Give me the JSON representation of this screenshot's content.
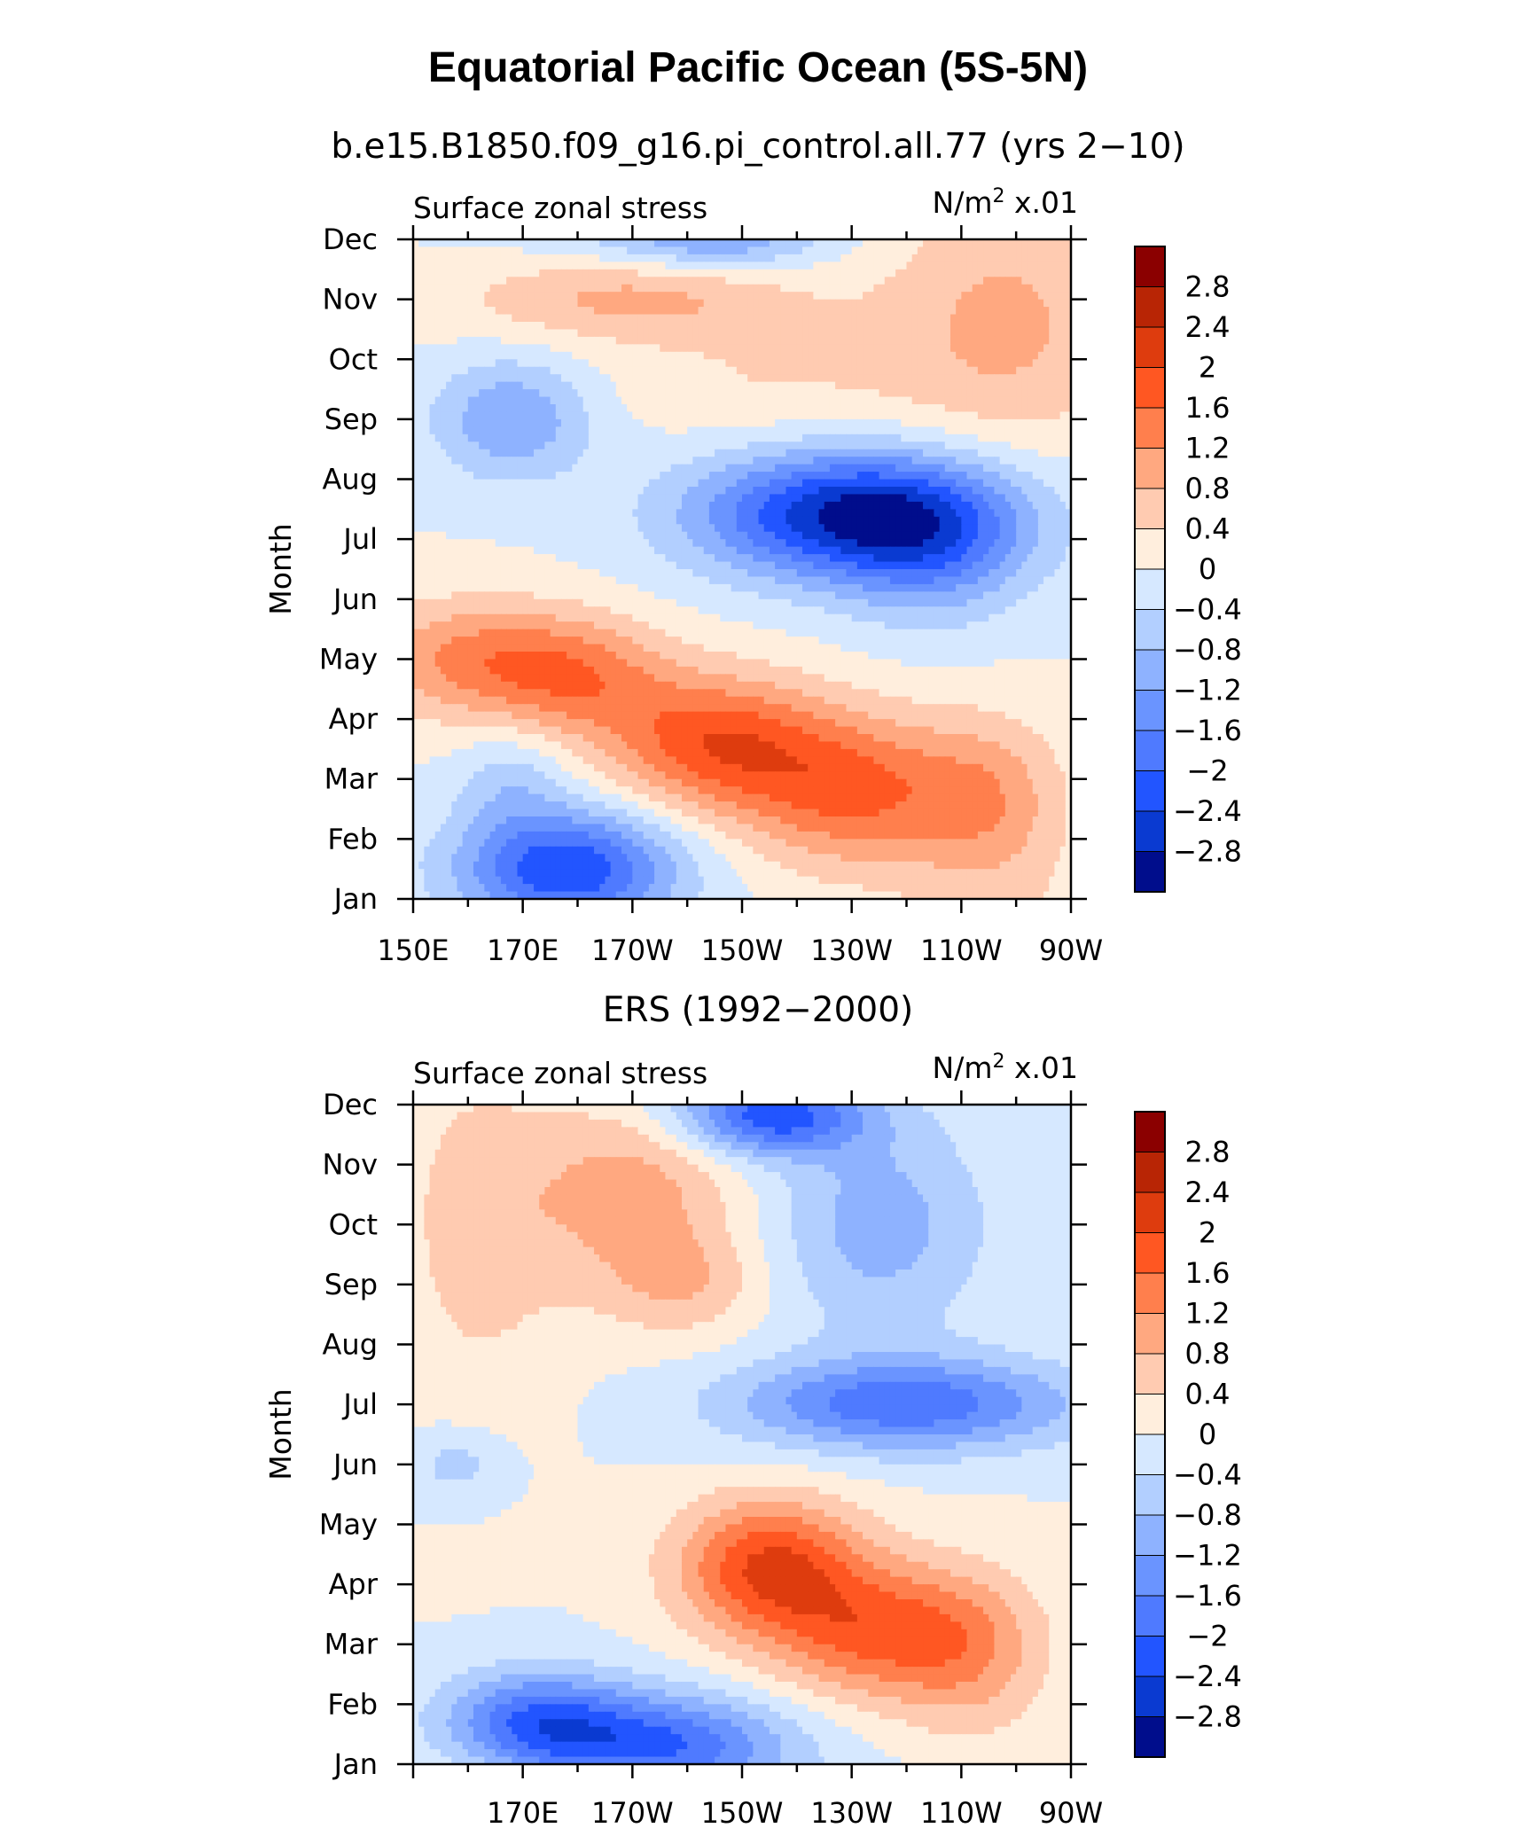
{
  "figure": {
    "title": "Equatorial Pacific Ocean (5S-5N)"
  },
  "chart_data": [
    {
      "type": "heatmap",
      "title": "b.e15.B1850.f09_g16.pi_control.all.77 (yrs 2−10)",
      "left_label": "Surface zonal stress",
      "units_label": "N/m",
      "units_sup": "2",
      "units_scale": "x.01",
      "ylabel": "Month",
      "x_ticks": [
        "150E",
        "170E",
        "170W",
        "150W",
        "130W",
        "110W",
        "90W"
      ],
      "y_ticks": [
        "Jan",
        "Feb",
        "Mar",
        "Apr",
        "May",
        "Jun",
        "Jul",
        "Aug",
        "Sep",
        "Oct",
        "Nov",
        "Dec"
      ],
      "xlim": [
        150,
        270
      ],
      "ylim": [
        1,
        12
      ],
      "features": [
        {
          "lon": 178,
          "month": 1.5,
          "amp": -2.4,
          "slon": 14,
          "smon": 0.7
        },
        {
          "lon": 168,
          "month": 3.0,
          "amp": -0.6,
          "slon": 7,
          "smon": 0.6
        },
        {
          "lon": 168,
          "month": 9.0,
          "amp": -1.2,
          "slon": 10,
          "smon": 0.7
        },
        {
          "lon": 205,
          "month": 12.0,
          "amp": -1.2,
          "slon": 14,
          "smon": 0.35
        },
        {
          "lon": 230,
          "month": 7.4,
          "amp": -2.8,
          "slon": 20,
          "smon": 0.75
        },
        {
          "lon": 245,
          "month": 6.8,
          "amp": -1.0,
          "slon": 12,
          "smon": 0.9
        },
        {
          "lon": 160,
          "month": 5.0,
          "amp": 1.2,
          "slon": 14,
          "smon": 0.7
        },
        {
          "lon": 180,
          "month": 4.7,
          "amp": 1.2,
          "slon": 12,
          "smon": 0.7
        },
        {
          "lon": 205,
          "month": 3.6,
          "amp": 1.8,
          "slon": 14,
          "smon": 0.8
        },
        {
          "lon": 230,
          "month": 2.8,
          "amp": 1.6,
          "slon": 14,
          "smon": 0.9
        },
        {
          "lon": 255,
          "month": 2.6,
          "amp": 1.0,
          "slon": 10,
          "smon": 1.0
        },
        {
          "lon": 190,
          "month": 11.0,
          "amp": 0.9,
          "slon": 22,
          "smon": 0.5
        },
        {
          "lon": 258,
          "month": 10.6,
          "amp": 0.9,
          "slon": 16,
          "smon": 1.5
        },
        {
          "lon": 215,
          "month": 9.6,
          "amp": 0.4,
          "slon": 20,
          "smon": 0.7
        }
      ]
    },
    {
      "type": "heatmap",
      "title": "ERS (1992−2000)",
      "left_label": "Surface zonal stress",
      "units_label": "N/m",
      "units_sup": "2",
      "units_scale": "x.01",
      "ylabel": "Month",
      "x_ticks": [
        "170E",
        "170W",
        "150W",
        "130W",
        "110W",
        "90W"
      ],
      "y_ticks": [
        "Jan",
        "Feb",
        "Mar",
        "Apr",
        "May",
        "Jun",
        "Jul",
        "Aug",
        "Sep",
        "Oct",
        "Nov",
        "Dec"
      ],
      "xlim": [
        150,
        270
      ],
      "ylim": [
        1,
        12
      ],
      "features": [
        {
          "lon": 172,
          "month": 1.7,
          "amp": -1.9,
          "slon": 12,
          "smon": 0.6
        },
        {
          "lon": 196,
          "month": 1.3,
          "amp": -2.0,
          "slon": 16,
          "smon": 0.6
        },
        {
          "lon": 215,
          "month": 11.8,
          "amp": -2.2,
          "slon": 12,
          "smon": 0.45
        },
        {
          "lon": 235,
          "month": 10.0,
          "amp": -1.0,
          "slon": 14,
          "smon": 1.3
        },
        {
          "lon": 240,
          "month": 7.0,
          "amp": -1.9,
          "slon": 22,
          "smon": 0.55
        },
        {
          "lon": 158,
          "month": 6.0,
          "amp": -0.6,
          "slon": 6,
          "smon": 0.4
        },
        {
          "lon": 215,
          "month": 4.3,
          "amp": 2.0,
          "slon": 12,
          "smon": 0.8
        },
        {
          "lon": 235,
          "month": 3.2,
          "amp": 1.6,
          "slon": 14,
          "smon": 0.8
        },
        {
          "lon": 252,
          "month": 2.8,
          "amp": 0.8,
          "slon": 10,
          "smon": 1.0
        },
        {
          "lon": 190,
          "month": 10.5,
          "amp": 1.0,
          "slon": 14,
          "smon": 1.2
        },
        {
          "lon": 162,
          "month": 10.0,
          "amp": 0.6,
          "slon": 10,
          "smon": 2.0
        },
        {
          "lon": 200,
          "month": 9.0,
          "amp": 0.6,
          "slon": 10,
          "smon": 0.6
        }
      ]
    }
  ],
  "colorbar": {
    "labels": [
      "2.8",
      "2.4",
      "2",
      "1.6",
      "1.2",
      "0.8",
      "0.4",
      "0",
      "−0.4",
      "−0.8",
      "−1.2",
      "−1.6",
      "−2",
      "−2.4",
      "−2.8"
    ],
    "colors": [
      "#8b0000",
      "#b82505",
      "#de3c0e",
      "#ff5722",
      "#ff7f4d",
      "#ffa880",
      "#ffcbb1",
      "#ffeedd",
      "#d6e8ff",
      "#b2cfff",
      "#8eb2ff",
      "#6a94ff",
      "#4f7aff",
      "#2255ff",
      "#0a3ad1",
      "#000d8c"
    ]
  }
}
